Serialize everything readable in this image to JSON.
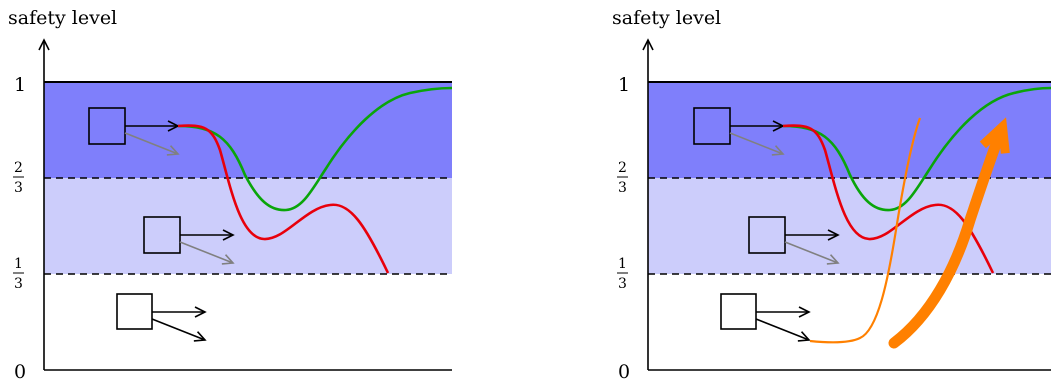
{
  "panels": [
    {
      "ylabel": "safety level",
      "ticks": {
        "zero": "0",
        "one_third": {
          "num": "1",
          "den": "3"
        },
        "two_thirds": {
          "num": "2",
          "den": "3"
        },
        "one": "1"
      },
      "extra_orange_path": false
    },
    {
      "ylabel": "safety level",
      "ticks": {
        "zero": "0",
        "one_third": {
          "num": "1",
          "den": "3"
        },
        "two_thirds": {
          "num": "2",
          "den": "3"
        },
        "one": "1"
      },
      "extra_orange_path": true
    }
  ],
  "colors": {
    "band_top": "#7f7ffb",
    "band_middle": "#cccdfb",
    "green_path": "#0aa50a",
    "red_path": "#e8000b",
    "orange_path": "#ff8000",
    "grey_arrow": "#808080"
  },
  "icons": [
    "box-icon",
    "arrow-icon",
    "big-curved-arrow-icon"
  ]
}
